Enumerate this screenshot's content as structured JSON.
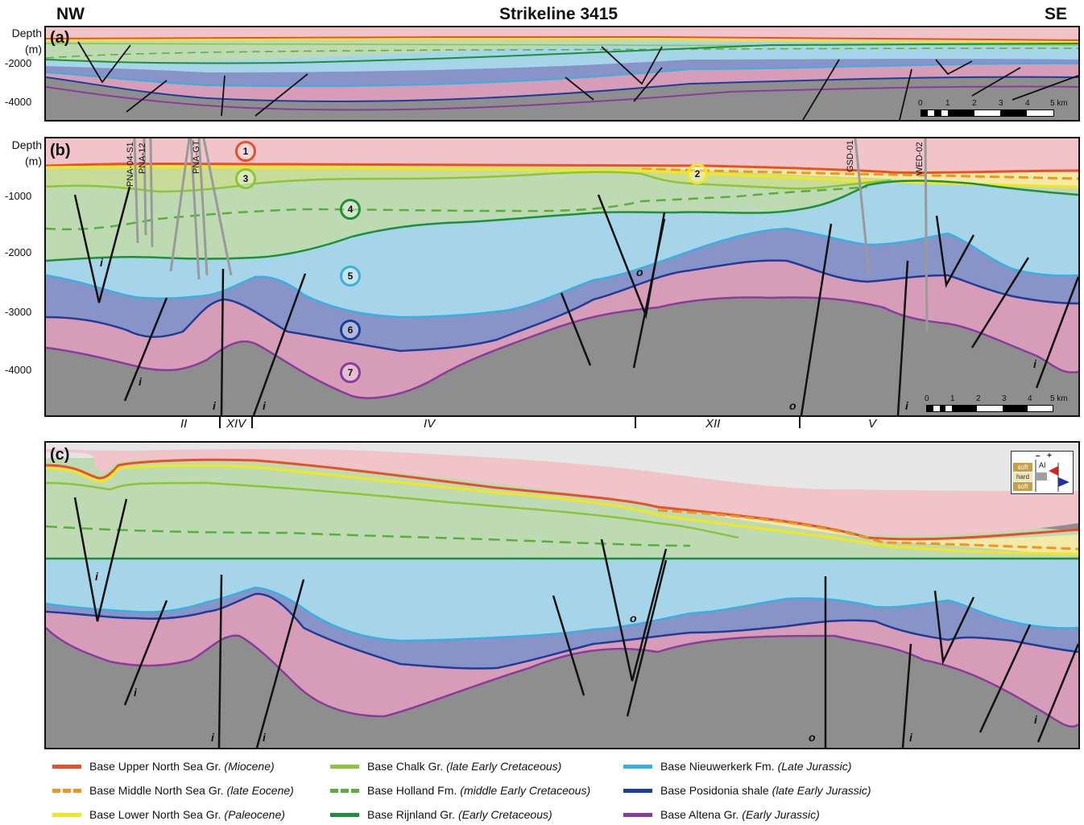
{
  "header": {
    "left": "NW",
    "title": "Strikeline 3415",
    "right": "SE"
  },
  "panels": {
    "a": {
      "label": "(a)",
      "depth_title": [
        "Depth",
        "(m)"
      ],
      "ticks": [
        "-2000",
        "-4000"
      ],
      "scale": [
        "0",
        "1",
        "2",
        "3",
        "4",
        "5 km"
      ]
    },
    "b": {
      "label": "(b)",
      "depth_title": [
        "Depth",
        "(m)"
      ],
      "ticks": [
        "-1000",
        "-2000",
        "-3000",
        "-4000"
      ],
      "wells": [
        "PNA-04-S1",
        "PNA-12",
        "PNA-GT",
        "GSD-01",
        "WED-02"
      ],
      "horizon_numbers": [
        "1",
        "2",
        "3",
        "4",
        "5",
        "6",
        "7"
      ],
      "fault_labels": [
        "i",
        "i",
        "o",
        "i",
        "i",
        "o",
        "i",
        "i"
      ],
      "scale": [
        "0",
        "1",
        "2",
        "3",
        "4",
        "5 km"
      ],
      "domains": [
        "II",
        "XIV",
        "IV",
        "XII",
        "V"
      ]
    },
    "c": {
      "label": "(c)",
      "fault_labels": [
        "i",
        "i",
        "o",
        "i",
        "i",
        "o",
        "i",
        "i"
      ],
      "polarity": {
        "soft_top": "soft",
        "hard": "hard",
        "soft_bottom": "soft",
        "minus": "–",
        "plus": "+",
        "ai": "AI"
      }
    }
  },
  "legend": [
    {
      "name": "Base Upper North Sea Gr.",
      "age": "(Miocene)",
      "color": "#e8502a",
      "dashed": false
    },
    {
      "name": "Base Middle North Sea Gr.",
      "age": "(late Eocene)",
      "color": "#f0961e",
      "dashed": true
    },
    {
      "name": "Base Lower North Sea Gr.",
      "age": "(Paleocene)",
      "color": "#f4e61c",
      "dashed": false
    },
    {
      "name": "Base Chalk Gr.",
      "age": "(late Early Cretaceous)",
      "color": "#8cc43c",
      "dashed": false
    },
    {
      "name": "Base Holland Fm.",
      "age": "(middle Early Cretaceous)",
      "color": "#5cae3c",
      "dashed": true
    },
    {
      "name": "Base Rijnland Gr.",
      "age": "(Early Cretaceous)",
      "color": "#1e9038",
      "dashed": false
    },
    {
      "name": "Base Nieuwerkerk Fm.",
      "age": "(Late Jurassic)",
      "color": "#3ab0e0",
      "dashed": false
    },
    {
      "name": "Base Posidonia shale",
      "age": "(late Early Jurassic)",
      "color": "#1e3c9a",
      "dashed": false
    },
    {
      "name": "Base Altena Gr.",
      "age": "(Early Jurassic)",
      "color": "#8a3c9c",
      "dashed": false
    }
  ]
}
